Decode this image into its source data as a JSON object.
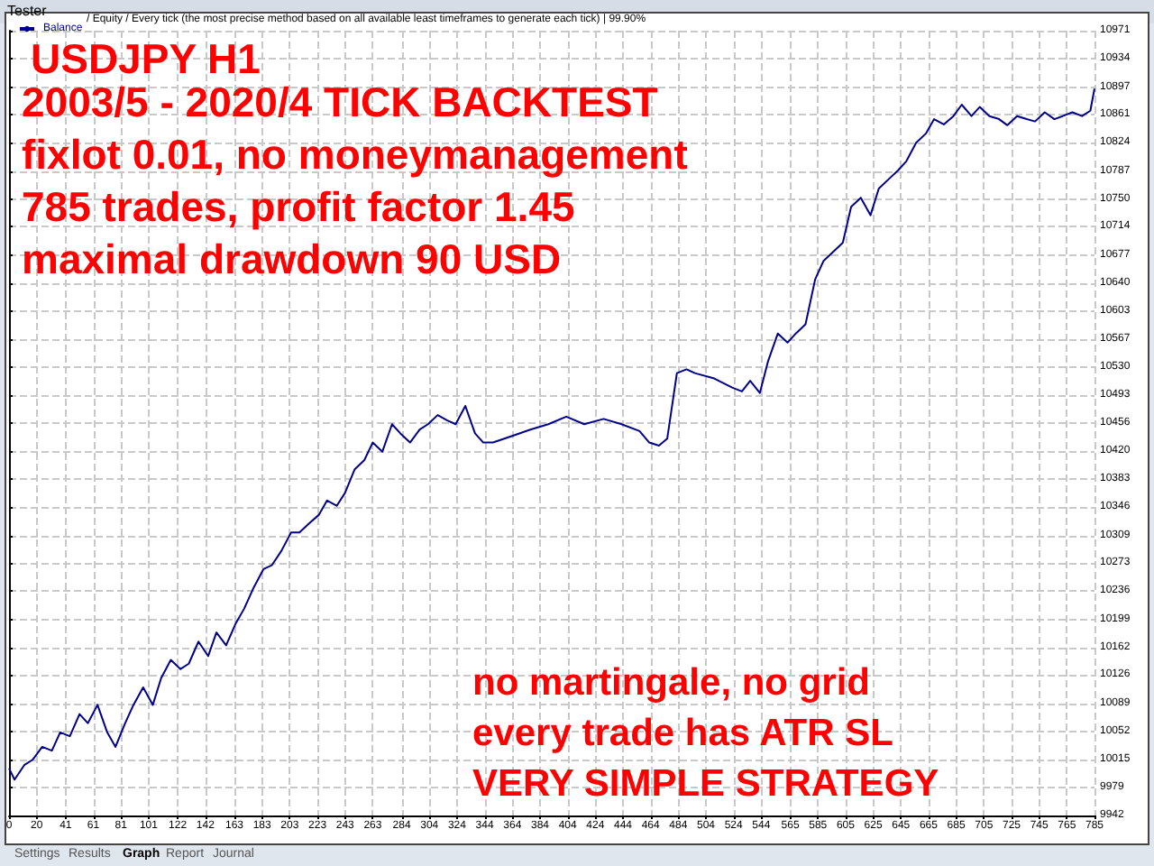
{
  "chart_data": {
    "type": "line",
    "title": "USDJPY H1",
    "annotations": [
      "2003/5 - 2020/4 TICK BACKTEST",
      "fixlot 0.01, no moneymanagement",
      "785 trades, profit factor 1.45",
      "maximal drawdown 90 USD",
      "no martingale, no grid",
      "every trade has ATR SL",
      "VERY SIMPLE STRATEGY",
      "/ Equity / Every tick (the most precise method based on all available least timeframes to generate each tick) | 99.90%",
      "Tester",
      "Settings",
      "Results",
      "Graph",
      "Report",
      "Journal"
    ],
    "x": [
      0,
      4,
      11,
      17,
      24,
      31,
      37,
      44,
      51,
      57,
      64,
      71,
      77,
      84,
      90,
      97,
      104,
      110,
      117,
      124,
      130,
      137,
      144,
      150,
      157,
      164,
      170,
      177,
      184,
      190,
      197,
      204,
      210,
      217,
      224,
      230,
      237,
      243,
      250,
      257,
      263,
      270,
      277,
      283,
      290,
      297,
      303,
      310,
      317,
      323,
      330,
      337,
      343,
      350,
      363,
      377,
      390,
      403,
      416,
      430,
      443,
      456,
      463,
      470,
      476,
      483,
      490,
      496,
      510,
      523,
      530,
      536,
      543,
      549,
      556,
      563,
      569,
      576,
      583,
      589,
      596,
      603,
      609,
      616,
      623,
      629,
      636,
      643,
      649,
      656,
      663,
      669,
      676,
      683,
      689,
      696,
      702,
      709,
      716,
      722,
      729,
      736,
      742,
      749,
      756,
      762,
      769,
      776,
      782,
      785
    ],
    "series": [
      {
        "name": "Balance",
        "color": "#00008b",
        "values": [
          10004,
          9989,
          10008,
          10015,
          10032,
          10027,
          10051,
          10046,
          10075,
          10063,
          10087,
          10051,
          10032,
          10063,
          10087,
          10110,
          10087,
          10122,
          10146,
          10134,
          10141,
          10170,
          10151,
          10182,
          10165,
          10194,
          10213,
          10241,
          10265,
          10270,
          10289,
          10313,
          10313,
          10325,
          10336,
          10355,
          10348,
          10365,
          10396,
          10408,
          10431,
          10419,
          10455,
          10443,
          10431,
          10448,
          10455,
          10467,
          10460,
          10455,
          10479,
          10443,
          10431,
          10431,
          10439,
          10448,
          10455,
          10465,
          10455,
          10462,
          10455,
          10446,
          10431,
          10427,
          10436,
          10522,
          10527,
          10522,
          10515,
          10503,
          10498,
          10512,
          10496,
          10538,
          10574,
          10562,
          10574,
          10586,
          10645,
          10669,
          10681,
          10693,
          10740,
          10752,
          10729,
          10764,
          10776,
          10788,
          10800,
          10824,
          10836,
          10855,
          10848,
          10859,
          10874,
          10859,
          10871,
          10859,
          10855,
          10847,
          10859,
          10855,
          10852,
          10864,
          10855,
          10859,
          10864,
          10859,
          10866,
          10895
        ]
      }
    ],
    "xlim": [
      0,
      785
    ],
    "xticks": [
      0,
      20,
      41,
      61,
      81,
      101,
      122,
      142,
      163,
      183,
      203,
      223,
      243,
      263,
      284,
      304,
      324,
      344,
      364,
      384,
      404,
      424,
      444,
      464,
      484,
      504,
      524,
      544,
      565,
      585,
      605,
      625,
      645,
      665,
      685,
      705,
      725,
      745,
      765,
      785
    ],
    "ylim": [
      9942,
      10971
    ],
    "yticks": [
      9942,
      9979,
      10015,
      10052,
      10089,
      10126,
      10162,
      10199,
      10236,
      10273,
      10309,
      10346,
      10383,
      10420,
      10456,
      10493,
      10530,
      10567,
      10603,
      10640,
      10677,
      10714,
      10750,
      10787,
      10824,
      10861,
      10897,
      10934,
      10971
    ],
    "grid": true,
    "legend": "top left",
    "marker": "none",
    "line_style": "solid"
  }
}
